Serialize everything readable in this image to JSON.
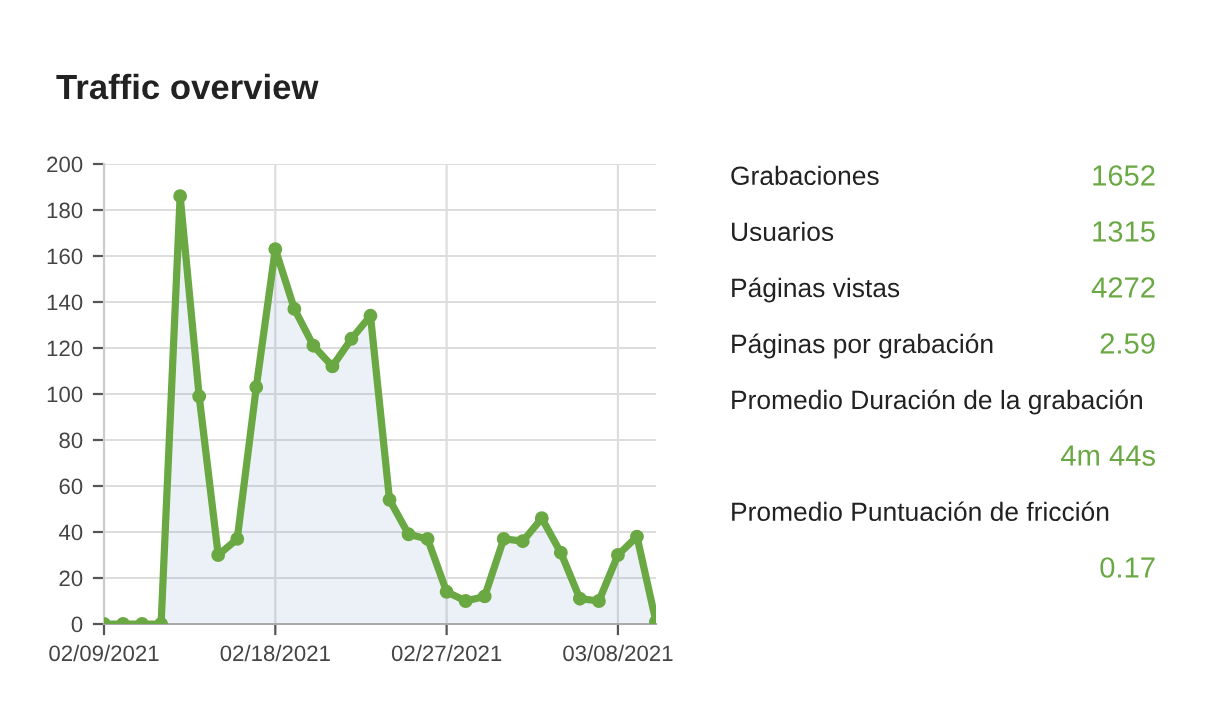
{
  "chart_data": [
    {
      "type": "area",
      "title": "Traffic overview",
      "x": [
        "2021-02-09",
        "2021-02-10",
        "2021-02-11",
        "2021-02-12",
        "2021-02-13",
        "2021-02-14",
        "2021-02-15",
        "2021-02-16",
        "2021-02-17",
        "2021-02-18",
        "2021-02-19",
        "2021-02-20",
        "2021-02-21",
        "2021-02-22",
        "2021-02-23",
        "2021-02-24",
        "2021-02-25",
        "2021-02-26",
        "2021-02-27",
        "2021-02-28",
        "2021-03-01",
        "2021-03-02",
        "2021-03-03",
        "2021-03-04",
        "2021-03-05",
        "2021-03-06",
        "2021-03-07",
        "2021-03-08",
        "2021-03-09",
        "2021-03-10"
      ],
      "series": [
        {
          "color": "#6aa843",
          "values": [
            0,
            0,
            0,
            0,
            186,
            99,
            30,
            37,
            103,
            163,
            137,
            121,
            112,
            124,
            134,
            54,
            39,
            37,
            14,
            10,
            12,
            37,
            36,
            46,
            31,
            11,
            10,
            30,
            38,
            1
          ]
        }
      ],
      "xlim": [
        "2021-02-09",
        "2021-03-10"
      ],
      "xticks": [
        {
          "value": "2021-02-09",
          "label": "02/09/2021"
        },
        {
          "value": "2021-02-18",
          "label": "02/18/2021"
        },
        {
          "value": "2021-02-27",
          "label": "02/27/2021"
        },
        {
          "value": "2021-03-08",
          "label": "03/08/2021"
        }
      ],
      "ylim": [
        0,
        200
      ],
      "yticks": [
        0,
        20,
        40,
        60,
        80,
        100,
        120,
        140,
        160,
        180,
        200
      ],
      "grid": true,
      "marker": "circle",
      "line_style": "solid",
      "legend": false
    },
    {
      "type": "other",
      "color": "#6aa843",
      "annotations": [
        "Grabaciones",
        "1652",
        "Usuarios",
        "1315",
        "Páginas vistas",
        "4272",
        "Páginas por grabación",
        "2.59",
        "Promedio Duración de la grabación",
        "4m 44s",
        "Promedio Puntuación de fricción",
        "0.17"
      ]
    }
  ]
}
